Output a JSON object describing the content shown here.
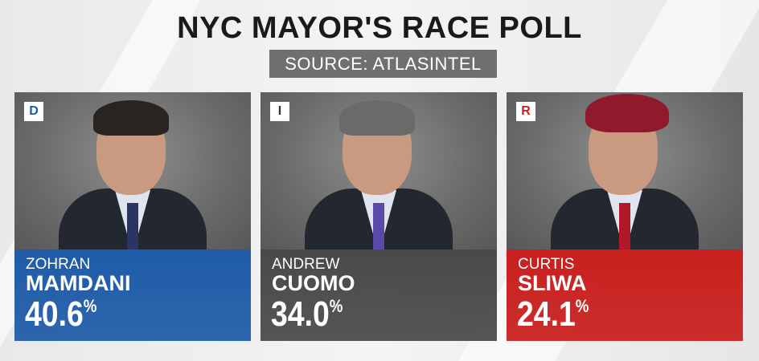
{
  "title": "NYC MAYOR'S RACE POLL",
  "source": "SOURCE: ATLASINTEL",
  "candidates": [
    {
      "party": "D",
      "first": "ZOHRAN",
      "last": "MAMDANI",
      "pct": "40.6",
      "pct_sign": "%",
      "color": "#1f5ca8",
      "badge_color": "#1f5ca8"
    },
    {
      "party": "I",
      "first": "ANDREW",
      "last": "CUOMO",
      "pct": "34.0",
      "pct_sign": "%",
      "color": "#4a4a4a",
      "badge_color": "#333333"
    },
    {
      "party": "R",
      "first": "CURTIS",
      "last": "SLIWA",
      "pct": "24.1",
      "pct_sign": "%",
      "color": "#c8201e",
      "badge_color": "#c8201e"
    }
  ]
}
